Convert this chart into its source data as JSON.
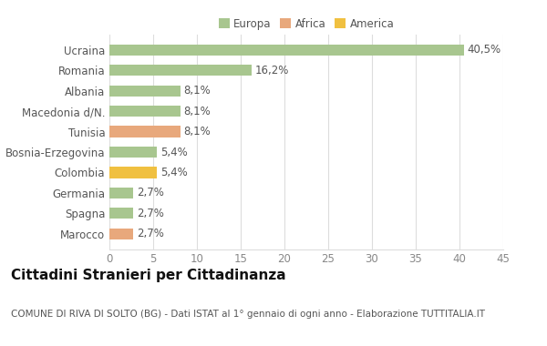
{
  "categories": [
    "Marocco",
    "Spagna",
    "Germania",
    "Colombia",
    "Bosnia-Erzegovina",
    "Tunisia",
    "Macedonia d/N.",
    "Albania",
    "Romania",
    "Ucraina"
  ],
  "values": [
    2.7,
    2.7,
    2.7,
    5.4,
    5.4,
    8.1,
    8.1,
    8.1,
    16.2,
    40.5
  ],
  "labels": [
    "2,7%",
    "2,7%",
    "2,7%",
    "5,4%",
    "5,4%",
    "8,1%",
    "8,1%",
    "8,1%",
    "16,2%",
    "40,5%"
  ],
  "colors": [
    "#e8a87c",
    "#a8c68f",
    "#a8c68f",
    "#f0c040",
    "#a8c68f",
    "#e8a87c",
    "#a8c68f",
    "#a8c68f",
    "#a8c68f",
    "#a8c68f"
  ],
  "legend": {
    "Europa": "#a8c68f",
    "Africa": "#e8a87c",
    "America": "#f0c040"
  },
  "title": "Cittadini Stranieri per Cittadinanza",
  "subtitle": "COMUNE DI RIVA DI SOLTO (BG) - Dati ISTAT al 1° gennaio di ogni anno - Elaborazione TUTTITALIA.IT",
  "xlim": [
    0,
    45
  ],
  "xticks": [
    0,
    5,
    10,
    15,
    20,
    25,
    30,
    35,
    40,
    45
  ],
  "background_color": "#ffffff",
  "bar_height": 0.55,
  "label_fontsize": 8.5,
  "tick_fontsize": 8.5,
  "title_fontsize": 11,
  "subtitle_fontsize": 7.5
}
